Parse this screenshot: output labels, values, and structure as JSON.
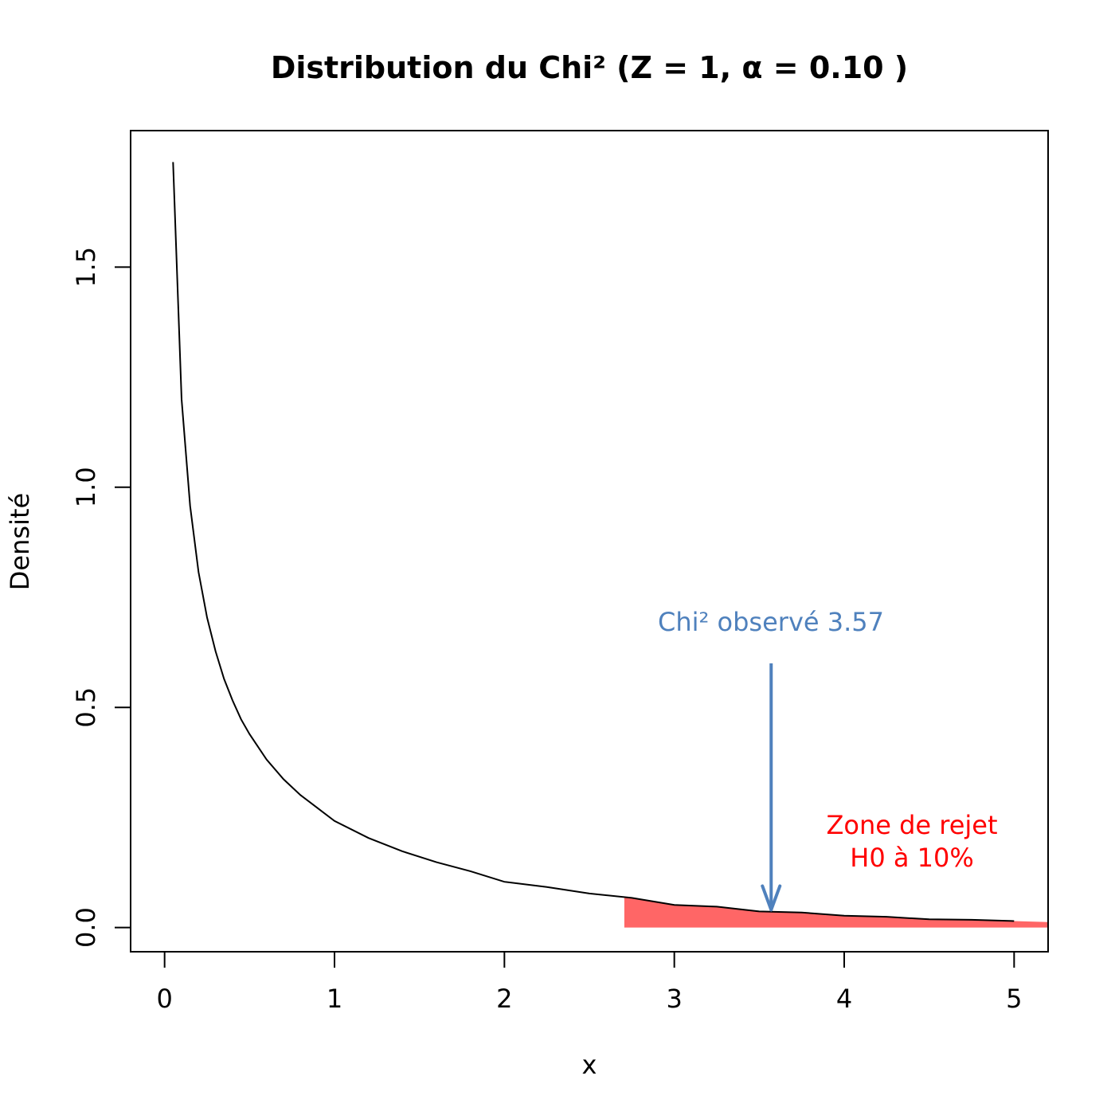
{
  "chart_data": {
    "type": "line",
    "title": "Distribution du Chi² (Z = 1, α = 0.10 )",
    "xlabel": "x",
    "ylabel": "Densité",
    "xlim": [
      -0.2,
      5.2
    ],
    "ylim": [
      -0.055,
      1.81
    ],
    "x_ticks": [
      0,
      1,
      2,
      3,
      4,
      5
    ],
    "y_ticks": [
      0.0,
      0.5,
      1.0,
      1.5
    ],
    "x_tick_labels": [
      "0",
      "1",
      "2",
      "3",
      "4",
      "5"
    ],
    "y_tick_labels": [
      "0.0",
      "0.5",
      "1.0",
      "1.5"
    ],
    "grid": false,
    "series": [
      {
        "x": [
          0.05,
          0.1,
          0.15,
          0.2,
          0.25,
          0.3,
          0.35,
          0.4,
          0.45,
          0.5,
          0.6,
          0.7,
          0.8,
          0.9,
          1.0,
          1.2,
          1.4,
          1.6,
          1.8,
          2.0,
          2.25,
          2.5,
          2.75,
          3.0,
          3.25,
          3.5,
          3.75,
          4.0,
          4.25,
          4.5,
          4.75,
          5.0
        ],
        "y": [
          1.7386,
          1.2001,
          0.9578,
          0.8071,
          0.7041,
          0.6271,
          0.5647,
          0.5157,
          0.4728,
          0.4394,
          0.3815,
          0.3368,
          0.3009,
          0.2713,
          0.242,
          0.2033,
          0.1731,
          0.1484,
          0.1278,
          0.1038,
          0.0918,
          0.0773,
          0.0672,
          0.0514,
          0.0473,
          0.0366,
          0.034,
          0.027,
          0.0244,
          0.0187,
          0.0176,
          0.0146
        ],
        "color": "#000000"
      }
    ],
    "rejection_zone": {
      "x_start": 2.706,
      "x_end": 5.2,
      "color": "#ff6666"
    },
    "observed": {
      "value": 3.57,
      "arrow_top": 0.6,
      "arrow_bottom": 0.04,
      "color": "#4f81bd"
    },
    "annotations": {
      "observed_label": "Chi² observé 3.57",
      "zone_line1": "Zone de rejet",
      "zone_line2": "H0 à 10%",
      "zone_color": "#ff0000"
    }
  }
}
